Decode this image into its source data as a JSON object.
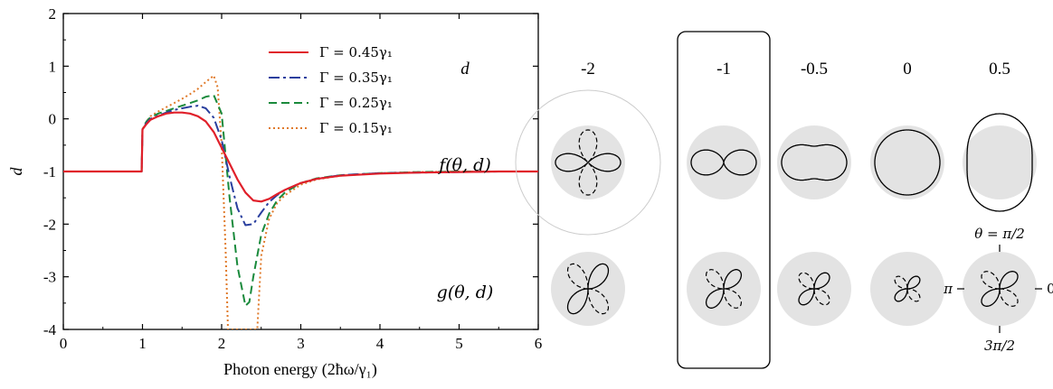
{
  "chart_data": [
    {
      "type": "line",
      "xlabel": "Photon energy (2ħω/γ₁)",
      "ylabel": "d",
      "xlim": [
        0,
        6
      ],
      "ylim": [
        -4,
        2
      ],
      "xticks": [
        "0",
        "1",
        "2",
        "3",
        "4",
        "5",
        "6"
      ],
      "yticks": [
        "2",
        "1",
        "0",
        "-1",
        "-2",
        "-3",
        "-4"
      ],
      "legend_position": "top-right",
      "series": [
        {
          "name": "Γ = 0.45γ₁",
          "color": "#e0202a",
          "dash": "solid",
          "x": [
            0,
            0.99,
            1.0,
            1.05,
            1.1,
            1.2,
            1.3,
            1.4,
            1.5,
            1.6,
            1.7,
            1.8,
            1.9,
            2.0,
            2.1,
            2.2,
            2.3,
            2.4,
            2.5,
            2.6,
            2.7,
            2.8,
            3.0,
            3.2,
            3.5,
            4.0,
            4.5,
            5.0,
            5.5,
            6.0
          ],
          "y": [
            -1,
            -1,
            -0.2,
            -0.1,
            -0.02,
            0.05,
            0.1,
            0.12,
            0.12,
            0.1,
            0.05,
            -0.05,
            -0.25,
            -0.55,
            -0.85,
            -1.15,
            -1.4,
            -1.55,
            -1.57,
            -1.52,
            -1.43,
            -1.35,
            -1.22,
            -1.14,
            -1.08,
            -1.04,
            -1.02,
            -1.01,
            -1.0,
            -1.0
          ]
        },
        {
          "name": "Γ = 0.35γ₁",
          "color": "#2a3f9e",
          "dash": "12,4,3,4",
          "x": [
            0,
            0.99,
            1.0,
            1.05,
            1.1,
            1.2,
            1.3,
            1.4,
            1.5,
            1.6,
            1.7,
            1.8,
            1.9,
            2.0,
            2.1,
            2.2,
            2.3,
            2.4,
            2.5,
            2.6,
            2.7,
            2.8,
            3.0,
            3.2,
            3.5,
            4.0,
            4.5,
            5.0,
            5.5,
            6.0
          ],
          "y": [
            -1,
            -1,
            -0.2,
            -0.08,
            0.0,
            0.06,
            0.12,
            0.17,
            0.2,
            0.23,
            0.25,
            0.2,
            0.02,
            -0.4,
            -1.1,
            -1.7,
            -2.02,
            -2.0,
            -1.78,
            -1.58,
            -1.45,
            -1.35,
            -1.22,
            -1.14,
            -1.07,
            -1.03,
            -1.02,
            -1.01,
            -1.0,
            -1.0
          ]
        },
        {
          "name": "Γ = 0.25γ₁",
          "color": "#1a8a3c",
          "dash": "9,5",
          "x": [
            0,
            0.99,
            1.0,
            1.05,
            1.1,
            1.2,
            1.3,
            1.4,
            1.5,
            1.6,
            1.7,
            1.8,
            1.9,
            2.0,
            2.1,
            2.2,
            2.3,
            2.35,
            2.4,
            2.5,
            2.6,
            2.7,
            2.8,
            3.0,
            3.2,
            3.5,
            4.0,
            4.5,
            5.0,
            5.5,
            6.0
          ],
          "y": [
            -1,
            -1,
            -0.2,
            -0.05,
            0.03,
            0.1,
            0.15,
            0.2,
            0.25,
            0.3,
            0.35,
            0.42,
            0.45,
            0.1,
            -1.5,
            -2.8,
            -3.55,
            -3.48,
            -3.0,
            -2.2,
            -1.8,
            -1.55,
            -1.4,
            -1.22,
            -1.13,
            -1.07,
            -1.03,
            -1.01,
            -1.0,
            -1.0,
            -1.0
          ]
        },
        {
          "name": "Γ = 0.15γ₁",
          "color": "#e07a2a",
          "dash": "2,3",
          "x": [
            0,
            0.99,
            1.0,
            1.05,
            1.1,
            1.2,
            1.3,
            1.4,
            1.5,
            1.6,
            1.7,
            1.8,
            1.9,
            1.95,
            2.0,
            2.05,
            2.08,
            2.45,
            2.5,
            2.6,
            2.7,
            2.8,
            3.0,
            3.2,
            3.5,
            4.0,
            4.5,
            5.0,
            5.5,
            6.0
          ],
          "y": [
            -1,
            -1,
            -0.2,
            -0.05,
            0.05,
            0.14,
            0.22,
            0.3,
            0.38,
            0.47,
            0.57,
            0.7,
            0.82,
            0.6,
            -0.5,
            -2.5,
            -4.0,
            -4.0,
            -2.6,
            -1.9,
            -1.6,
            -1.45,
            -1.25,
            -1.15,
            -1.08,
            -1.03,
            -1.01,
            -1.0,
            -1.0,
            -1.0
          ]
        }
      ]
    },
    {
      "type": "polar-grid",
      "corner_label": "d",
      "columns": [
        {
          "d_label": "-2",
          "d": -2,
          "highlighted": false
        },
        {
          "d_label": "-1",
          "d": -1,
          "highlighted": true
        },
        {
          "d_label": "-0.5",
          "d": -0.5,
          "highlighted": false
        },
        {
          "d_label": "0",
          "d": 0,
          "highlighted": false
        },
        {
          "d_label": "0.5",
          "d": 0.5,
          "highlighted": false
        }
      ],
      "rows": [
        {
          "label": "f(θ, d)"
        },
        {
          "label": "g(θ, d)"
        }
      ],
      "angle_labels": {
        "top": "θ = π/2",
        "left": "π",
        "right": "0",
        "bottom": "3π/2"
      }
    }
  ]
}
